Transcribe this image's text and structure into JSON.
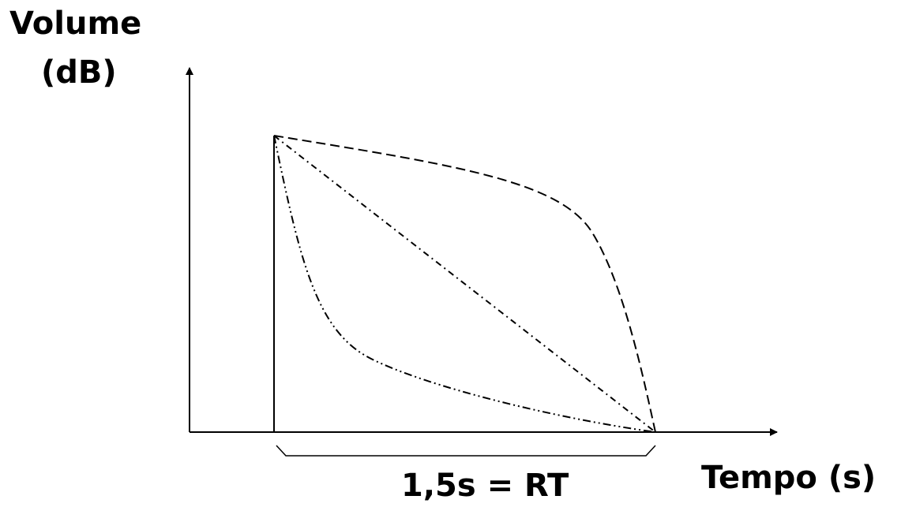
{
  "ylabel": {
    "line1": "Volume",
    "line2": "(dB)"
  },
  "xlabel": "Tempo (s)",
  "span_label": "1,5s = RT",
  "colors": {
    "ink": "#000000",
    "background": "#ffffff"
  },
  "curves": [
    {
      "style": "dashed",
      "shape": "convex"
    },
    {
      "style": "dash-dot",
      "shape": "linear"
    },
    {
      "style": "dash-dot-dot",
      "shape": "concave"
    }
  ]
}
